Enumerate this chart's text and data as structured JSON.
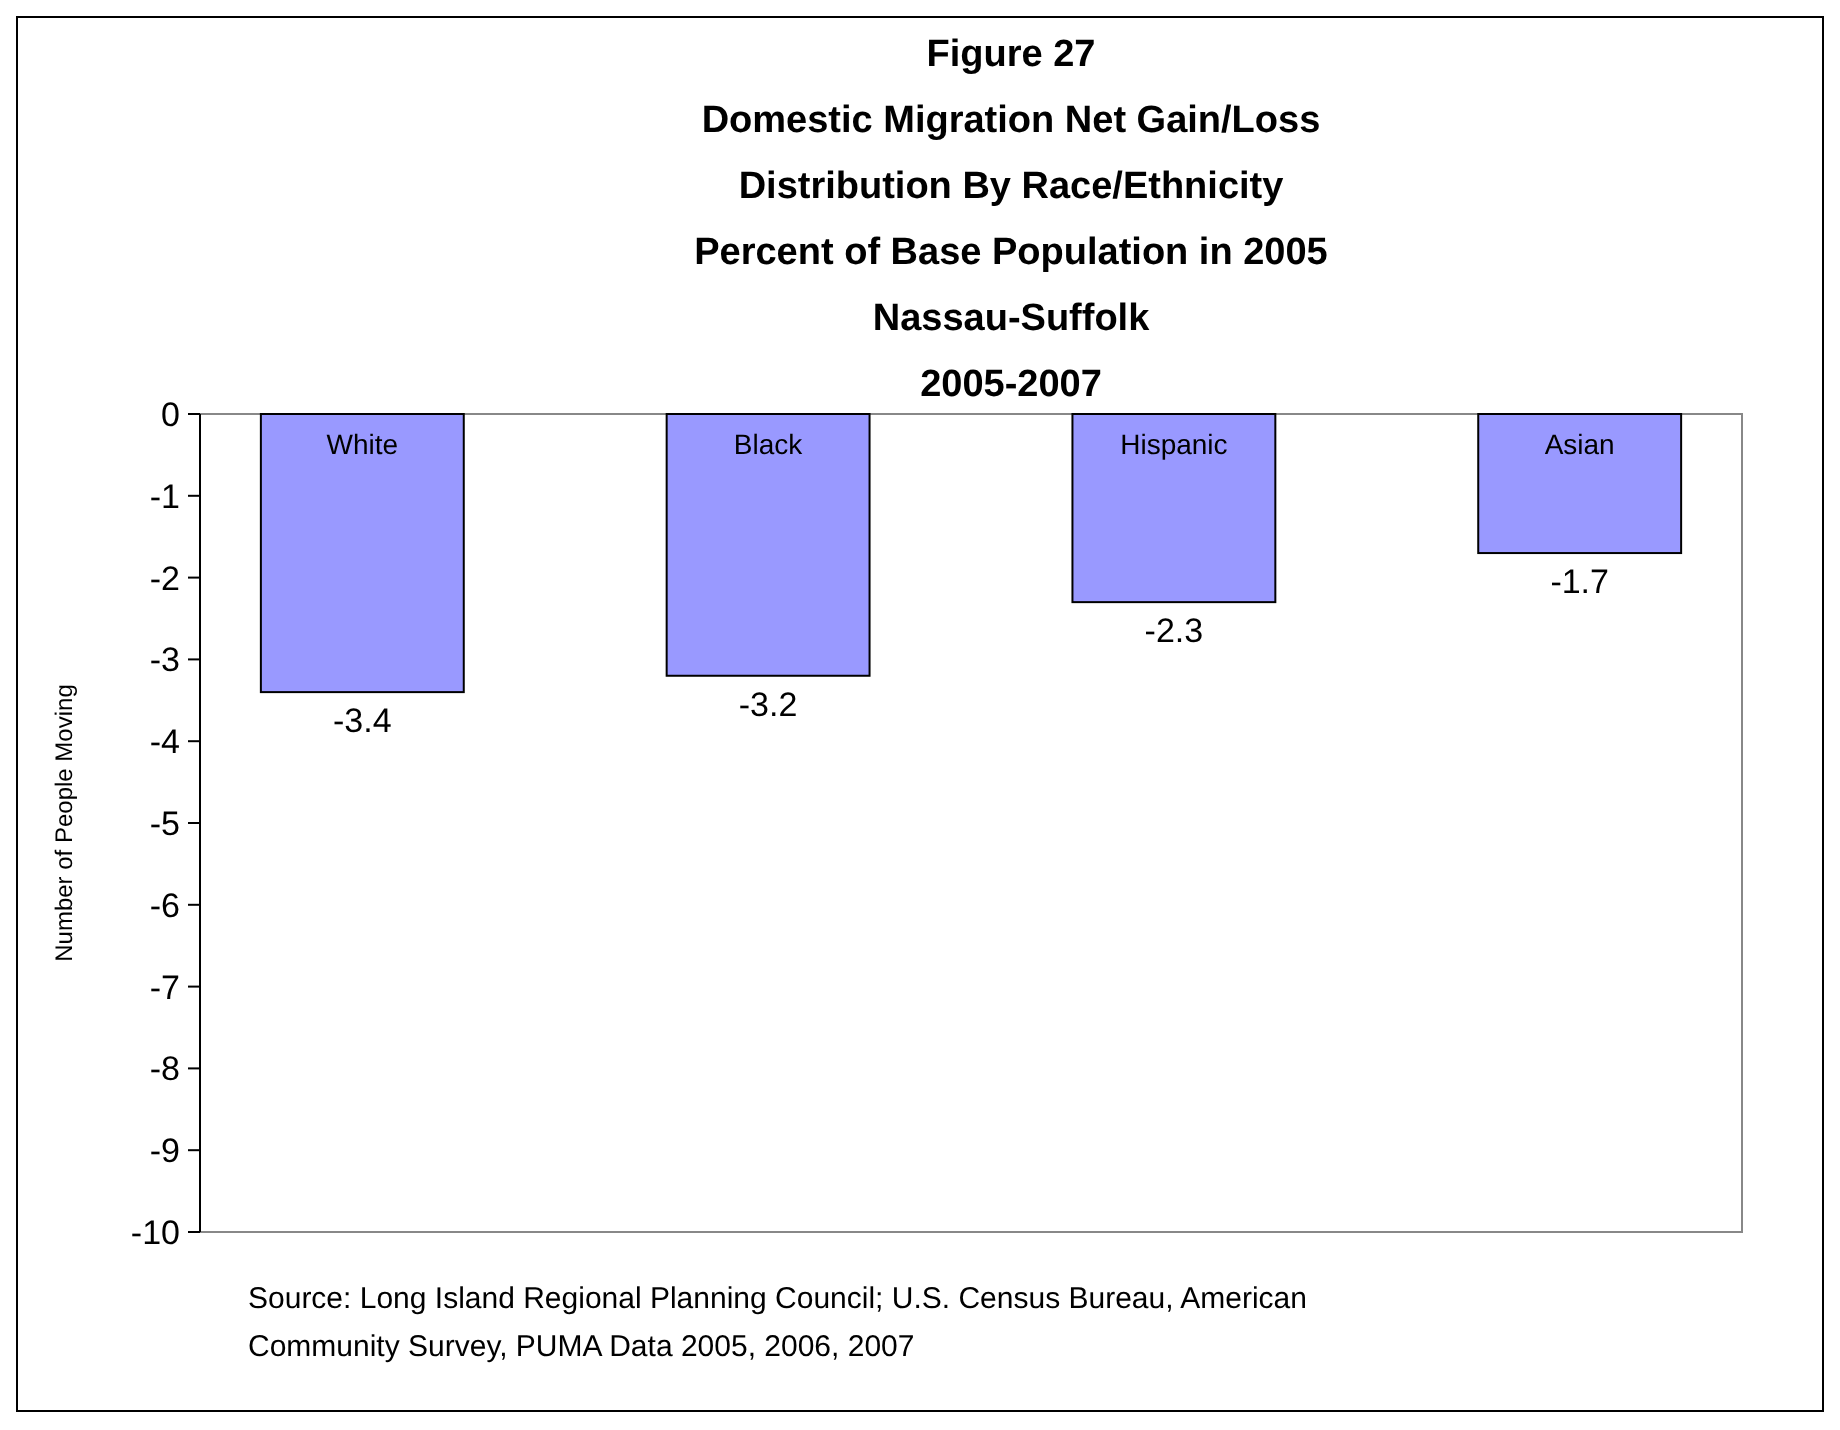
{
  "chart_data": {
    "type": "bar",
    "title": "Figure 27\nDomestic Migration Net Gain/Loss\nDistribution By Race/Ethnicity\nPercent of Base Population in 2005\nNassau-Suffolk\n2005-2007",
    "categories": [
      "White",
      "Black",
      "Hispanic",
      "Asian"
    ],
    "values": [
      -3.4,
      -3.2,
      -2.3,
      -1.7
    ],
    "color": "#9999ff",
    "ylabel": "Number of People Moving",
    "ylim": [
      -10,
      0
    ],
    "yticks": [
      0,
      -1,
      -2,
      -3,
      -4,
      -5,
      -6,
      -7,
      -8,
      -9,
      -10
    ],
    "data_labels": true,
    "grid": false,
    "annotations": [
      "Source: Long Island Regional Planning Council; U.S. Census Bureau, American Community Survey, PUMA Data 2005, 2006, 2007"
    ]
  }
}
